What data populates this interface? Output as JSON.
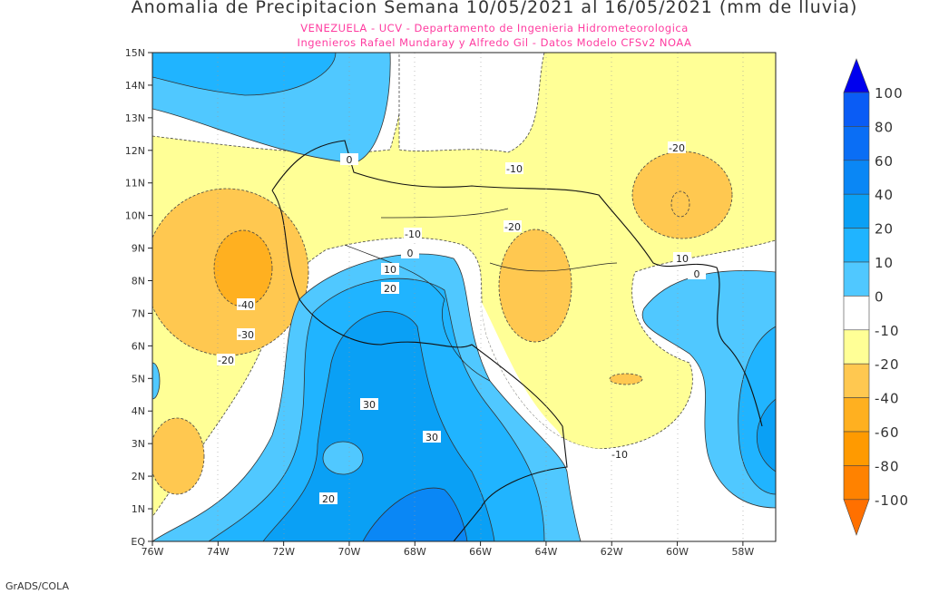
{
  "title": "Anomalia de Precipitacion Semana 10/05/2021 al 16/05/2021 (mm de lluvia)",
  "subtitle_1": "VENEZUELA - UCV - Departamento de Ingenieria Hidrometeorologica",
  "subtitle_2": "Ingenieros Rafael Mundaray y Alfredo Gil - Datos Modelo CFSv2 NOAA",
  "footer": "GrADS/COLA",
  "map": {
    "lon_labels": [
      "76W",
      "74W",
      "72W",
      "70W",
      "68W",
      "66W",
      "64W",
      "62W",
      "60W",
      "58W"
    ],
    "lat_labels": [
      "15N",
      "14N",
      "13N",
      "12N",
      "11N",
      "10N",
      "9N",
      "8N",
      "7N",
      "6N",
      "5N",
      "4N",
      "3N",
      "2N",
      "1N",
      "EQ"
    ],
    "contour_labels": [
      "-10",
      "-20",
      "-20",
      "-10",
      "0",
      "10",
      "20",
      "-40",
      "-30",
      "-20",
      "30",
      "30",
      "20",
      "-10",
      "10",
      "0",
      "0"
    ]
  },
  "colorbar": {
    "labels": [
      "100",
      "80",
      "60",
      "40",
      "20",
      "10",
      "0",
      "-10",
      "-20",
      "-40",
      "-60",
      "-80",
      "-100"
    ],
    "colors": [
      "#0a5cf5",
      "#0a6ef5",
      "#0a87f5",
      "#0aa0f5",
      "#20b4ff",
      "#50c8ff",
      "#ffffff",
      "#ffff96",
      "#ffc850",
      "#ffb020",
      "#ff9a00",
      "#ff8200"
    ],
    "top_arrow_color": "#0000ee",
    "bottom_arrow_color": "#ff7000"
  }
}
